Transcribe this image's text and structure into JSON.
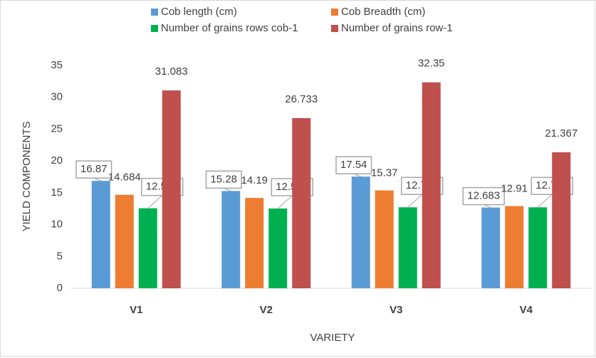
{
  "chart_data": {
    "type": "bar",
    "x_label": "VARIETY",
    "y_label": "YIELD COMPONENTS",
    "categories": [
      "V1",
      "V2",
      "V3",
      "V4"
    ],
    "series": [
      {
        "name": "Cob length (cm)",
        "color": "#5b9bd5",
        "values": [
          16.87,
          15.28,
          17.54,
          12.683
        ]
      },
      {
        "name": "Cob Breadth (cm)",
        "color": "#ed7d31",
        "values": [
          14.684,
          14.19,
          15.37,
          12.91
        ]
      },
      {
        "name": "Number of grains rows cob-1",
        "color": "#00b050",
        "values": [
          12.567,
          12.533,
          12.717,
          12.717
        ]
      },
      {
        "name": "Number of grains row-1",
        "color": "#c0504d",
        "values": [
          31.083,
          26.733,
          32.35,
          21.367
        ]
      }
    ],
    "ylim": [
      0,
      35
    ],
    "yticks": [
      0,
      5,
      10,
      15,
      20,
      25,
      30,
      35
    ],
    "grid": false,
    "legend": "top"
  }
}
